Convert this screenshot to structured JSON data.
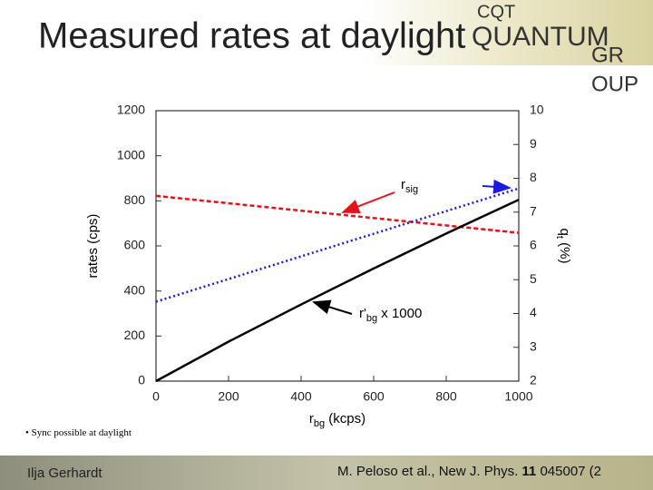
{
  "header": {
    "title": "Measured rates at daylight",
    "logo": {
      "top": "CQT",
      "main": "QUANTUM",
      "line2": "GR",
      "line3": "OUP"
    }
  },
  "chart_data": {
    "type": "line",
    "ylabel": "rates (cps)",
    "xlabel": {
      "main": "r",
      "sub": "bg",
      "unit": " (kcps)"
    },
    "y2label": {
      "main": "q",
      "sub": "t",
      "unit": " (%)"
    },
    "xlim": [
      0,
      1000
    ],
    "xticks": [
      0,
      200,
      400,
      600,
      800,
      1000
    ],
    "ylim": [
      0,
      1200
    ],
    "yticks": [
      0,
      200,
      400,
      600,
      800,
      1000,
      1200
    ],
    "y2lim": [
      2,
      10
    ],
    "y2ticks": [
      2,
      3,
      4,
      5,
      6,
      7,
      8,
      9,
      10
    ],
    "series": [
      {
        "color": "#e8101a",
        "dash": "dashed",
        "x": [
          0,
          1000
        ],
        "values": [
          822,
          658
        ]
      },
      {
        "color": "#1a1ae0",
        "dash": "dotted",
        "axis": "y2",
        "x": [
          0,
          1000
        ],
        "values": [
          4.35,
          7.7
        ]
      },
      {
        "color": "#000000",
        "dash": "solid",
        "x": [
          0,
          200,
          400,
          600,
          800,
          1000
        ],
        "values": [
          0,
          175,
          340,
          500,
          655,
          805
        ]
      }
    ],
    "annotations": [
      {
        "main": "r",
        "sub": "sig"
      },
      {
        "main": "r'",
        "sub": "bg",
        "suffix": " x 1000"
      }
    ]
  },
  "bullet": "Sync possible at daylight",
  "footer": {
    "author": "Ilja Gerhardt",
    "citation": {
      "pre": "M. Peloso et al., New J. Phys. ",
      "volume": "11",
      "post": " 045007 (2"
    }
  }
}
